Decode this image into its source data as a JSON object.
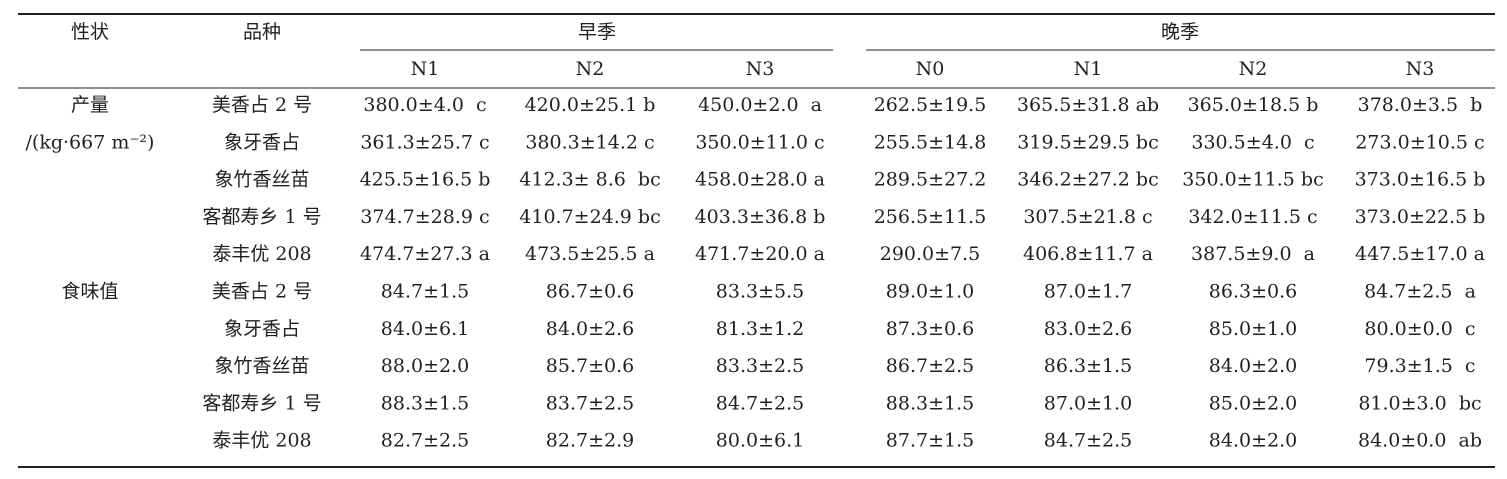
{
  "table": {
    "header": {
      "trait": "性状",
      "variety": "品种",
      "seasons": [
        {
          "label": "早季",
          "subcols": [
            "N1",
            "N2",
            "N3"
          ]
        },
        {
          "label": "晚季",
          "subcols": [
            "N0",
            "N1",
            "N2",
            "N3"
          ]
        }
      ]
    },
    "groups": [
      {
        "label": "产量",
        "unit": "/(kg·667 m⁻²)",
        "rows": [
          {
            "variety": "美香占 2 号",
            "cells": [
              "380.0±4.0  c",
              "420.0±25.1 b",
              "450.0±2.0  a",
              "262.5±19.5",
              "365.5±31.8 ab",
              "365.0±18.5 b",
              "378.0±3.5  b"
            ]
          },
          {
            "variety": "象牙香占",
            "cells": [
              "361.3±25.7 c",
              "380.3±14.2 c",
              "350.0±11.0 c",
              "255.5±14.8",
              "319.5±29.5 bc",
              "330.5±4.0  c",
              "273.0±10.5 c"
            ]
          },
          {
            "variety": "象竹香丝苗",
            "cells": [
              "425.5±16.5 b",
              "412.3± 8.6  bc",
              "458.0±28.0 a",
              "289.5±27.2",
              "346.2±27.2 bc",
              "350.0±11.5 bc",
              "373.0±16.5 b"
            ]
          },
          {
            "variety": "客都寿乡 1 号",
            "cells": [
              "374.7±28.9 c",
              "410.7±24.9 bc",
              "403.3±36.8 b",
              "256.5±11.5",
              "307.5±21.8 c",
              "342.0±11.5 c",
              "373.0±22.5 b"
            ]
          },
          {
            "variety": "泰丰优 208",
            "cells": [
              "474.7±27.3 a",
              "473.5±25.5 a",
              "471.7±20.0 a",
              "290.0±7.5",
              "406.8±11.7 a",
              "387.5±9.0  a",
              "447.5±17.0 a"
            ]
          }
        ]
      },
      {
        "label": "食味值",
        "rows": [
          {
            "variety": "美香占 2 号",
            "cells": [
              "84.7±1.5",
              "86.7±0.6",
              "83.3±5.5",
              "89.0±1.0",
              "87.0±1.7",
              "86.3±0.6",
              "84.7±2.5  a"
            ]
          },
          {
            "variety": "象牙香占",
            "cells": [
              "84.0±6.1",
              "84.0±2.6",
              "81.3±1.2",
              "87.3±0.6",
              "83.0±2.6",
              "85.0±1.0",
              "80.0±0.0  c"
            ]
          },
          {
            "variety": "象竹香丝苗",
            "cells": [
              "88.0±2.0",
              "85.7±0.6",
              "83.3±2.5",
              "86.7±2.5",
              "86.3±1.5",
              "84.0±2.0",
              "79.3±1.5  c"
            ]
          },
          {
            "variety": "客都寿乡 1 号",
            "cells": [
              "88.3±1.5",
              "83.7±2.5",
              "84.7±2.5",
              "88.3±1.5",
              "87.0±1.0",
              "85.0±2.0",
              "81.0±3.0  bc"
            ]
          },
          {
            "variety": "泰丰优 208",
            "cells": [
              "82.7±2.5",
              "82.7±2.9",
              "80.0±6.1",
              "87.7±1.5",
              "84.7±2.5",
              "84.0±2.0",
              "84.0±0.0  ab"
            ]
          }
        ]
      }
    ]
  }
}
